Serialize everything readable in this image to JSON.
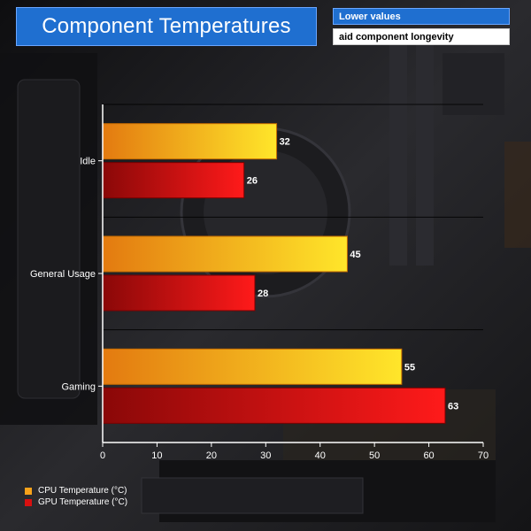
{
  "chart_data": {
    "type": "bar",
    "orientation": "horizontal",
    "title": "Component Temperatures",
    "notes": [
      "Lower values",
      "aid component longevity"
    ],
    "categories": [
      "Idle",
      "General Usage",
      "Gaming"
    ],
    "series": [
      {
        "name": "CPU Temperature (°C)",
        "values": [
          32,
          45,
          55
        ],
        "color": "#f7b21a"
      },
      {
        "name": "GPU Temperature (°C)",
        "values": [
          26,
          28,
          63
        ],
        "color": "#d81010"
      }
    ],
    "xlim": [
      0,
      70
    ],
    "xticks": [
      0,
      10,
      20,
      30,
      40,
      50,
      60,
      70
    ],
    "grid": true,
    "legend_position": "bottom-left"
  }
}
